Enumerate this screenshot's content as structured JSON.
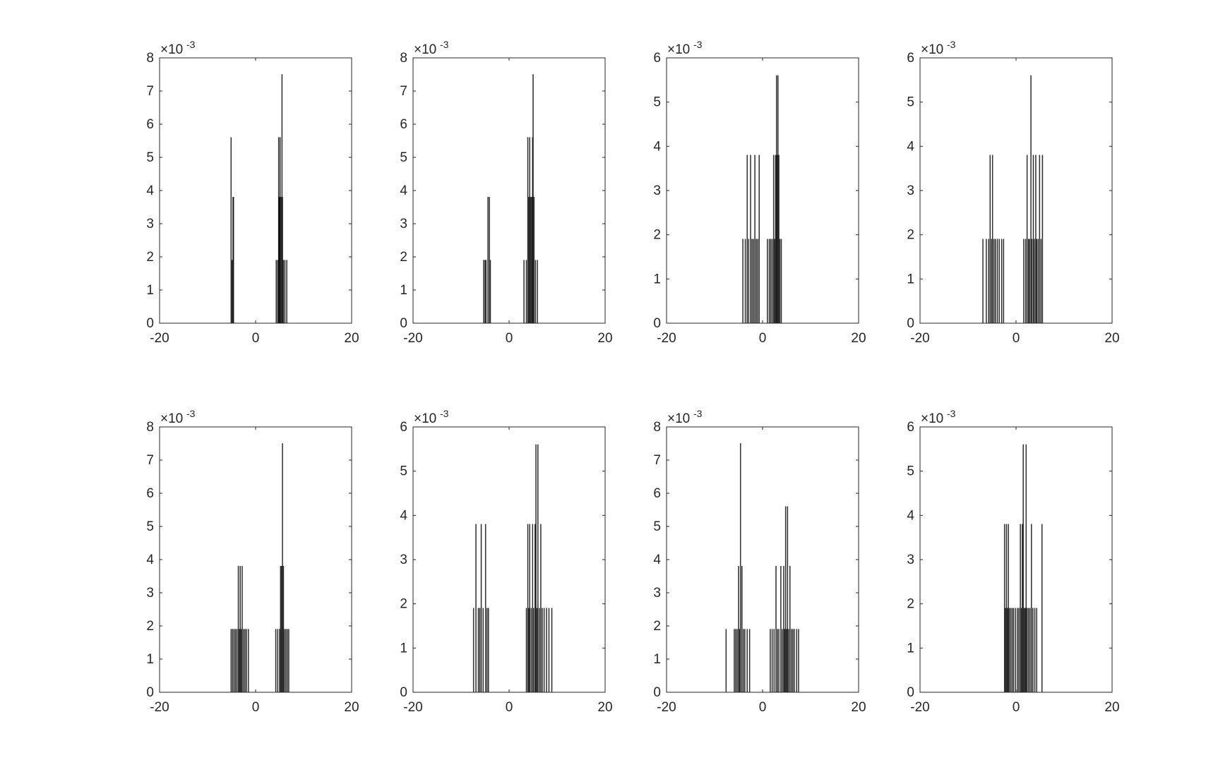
{
  "chart_data": [
    {
      "type": "bar",
      "ylim": [
        0,
        0.008
      ],
      "yticks": [
        0,
        1,
        2,
        3,
        4,
        5,
        6,
        7,
        8
      ],
      "ytick_labels": [
        "0",
        "1",
        "2",
        "3",
        "4",
        "5",
        "6",
        "7",
        "8"
      ],
      "xlim": [
        -20,
        20
      ],
      "xticks": [
        -20,
        0,
        20
      ],
      "xtick_labels": [
        "-20",
        "0",
        "20"
      ],
      "yexponent": "×10",
      "yexponent_power": "-3",
      "bars": [
        [
          -5.1,
          0.0056
        ],
        [
          -4.9,
          0.0019
        ],
        [
          -4.7,
          0.0038
        ],
        [
          -4.6,
          0.0038
        ],
        [
          4.3,
          0.0019
        ],
        [
          4.6,
          0.0019
        ],
        [
          4.8,
          0.0056
        ],
        [
          4.9,
          0.0038
        ],
        [
          5.0,
          0.0038
        ],
        [
          5.1,
          0.0056
        ],
        [
          5.3,
          0.0038
        ],
        [
          5.5,
          0.0075
        ],
        [
          5.6,
          0.0038
        ],
        [
          5.8,
          0.0019
        ],
        [
          6.1,
          0.0019
        ],
        [
          6.5,
          0.0019
        ]
      ]
    },
    {
      "type": "bar",
      "ylim": [
        0,
        0.008
      ],
      "yticks": [
        0,
        1,
        2,
        3,
        4,
        5,
        6,
        7,
        8
      ],
      "ytick_labels": [
        "0",
        "1",
        "2",
        "3",
        "4",
        "5",
        "6",
        "7",
        "8"
      ],
      "xlim": [
        -20,
        20
      ],
      "xticks": [
        -20,
        0,
        20
      ],
      "xtick_labels": [
        "-20",
        "0",
        "20"
      ],
      "yexponent": "×10",
      "yexponent_power": "-3",
      "bars": [
        [
          -5.3,
          0.0019
        ],
        [
          -5.0,
          0.0019
        ],
        [
          -4.8,
          0.0019
        ],
        [
          -4.4,
          0.0038
        ],
        [
          -4.1,
          0.0038
        ],
        [
          -3.9,
          0.0019
        ],
        [
          3.1,
          0.0019
        ],
        [
          3.6,
          0.0019
        ],
        [
          3.9,
          0.0056
        ],
        [
          4.1,
          0.0038
        ],
        [
          4.3,
          0.0056
        ],
        [
          4.5,
          0.0038
        ],
        [
          4.7,
          0.0038
        ],
        [
          4.9,
          0.0056
        ],
        [
          5.0,
          0.0075
        ],
        [
          5.2,
          0.0038
        ],
        [
          5.5,
          0.0019
        ],
        [
          5.9,
          0.0019
        ]
      ]
    },
    {
      "type": "bar",
      "ylim": [
        0,
        0.006
      ],
      "yticks": [
        0,
        1,
        2,
        3,
        4,
        5,
        6
      ],
      "ytick_labels": [
        "0",
        "1",
        "2",
        "3",
        "4",
        "5",
        "6"
      ],
      "xlim": [
        -20,
        20
      ],
      "xticks": [
        -20,
        0,
        20
      ],
      "xtick_labels": [
        "-20",
        "0",
        "20"
      ],
      "yexponent": "×10",
      "yexponent_power": "-3",
      "bars": [
        [
          -4.1,
          0.0019
        ],
        [
          -3.6,
          0.0019
        ],
        [
          -3.2,
          0.0038
        ],
        [
          -2.9,
          0.0019
        ],
        [
          -2.5,
          0.0038
        ],
        [
          -2.2,
          0.0019
        ],
        [
          -1.9,
          0.0019
        ],
        [
          -1.6,
          0.0038
        ],
        [
          -1.3,
          0.0019
        ],
        [
          -1.0,
          0.0019
        ],
        [
          -0.7,
          0.0038
        ],
        [
          1.0,
          0.0019
        ],
        [
          1.4,
          0.0019
        ],
        [
          1.7,
          0.0019
        ],
        [
          2.0,
          0.0019
        ],
        [
          2.3,
          0.0038
        ],
        [
          2.5,
          0.0019
        ],
        [
          2.7,
          0.0038
        ],
        [
          2.9,
          0.0056
        ],
        [
          3.0,
          0.0038
        ],
        [
          3.2,
          0.0056
        ],
        [
          3.4,
          0.0038
        ],
        [
          3.6,
          0.0019
        ],
        [
          3.9,
          0.0019
        ]
      ]
    },
    {
      "type": "bar",
      "ylim": [
        0,
        0.006
      ],
      "yticks": [
        0,
        1,
        2,
        3,
        4,
        5,
        6
      ],
      "ytick_labels": [
        "0",
        "1",
        "2",
        "3",
        "4",
        "5",
        "6"
      ],
      "xlim": [
        -20,
        20
      ],
      "xticks": [
        -20,
        0,
        20
      ],
      "xtick_labels": [
        "-20",
        "0",
        "20"
      ],
      "yexponent": "×10",
      "yexponent_power": "-3",
      "bars": [
        [
          -6.9,
          0.0019
        ],
        [
          -6.2,
          0.0019
        ],
        [
          -5.7,
          0.0019
        ],
        [
          -5.4,
          0.0038
        ],
        [
          -5.1,
          0.0019
        ],
        [
          -4.9,
          0.0038
        ],
        [
          -4.6,
          0.0019
        ],
        [
          -4.3,
          0.0019
        ],
        [
          -3.9,
          0.0019
        ],
        [
          -3.5,
          0.0019
        ],
        [
          -3.0,
          0.0019
        ],
        [
          -2.6,
          0.0019
        ],
        [
          1.6,
          0.0019
        ],
        [
          2.0,
          0.0019
        ],
        [
          2.3,
          0.0038
        ],
        [
          2.6,
          0.0019
        ],
        [
          2.8,
          0.0019
        ],
        [
          3.1,
          0.0056
        ],
        [
          3.3,
          0.0019
        ],
        [
          3.6,
          0.0038
        ],
        [
          3.8,
          0.0019
        ],
        [
          4.1,
          0.0038
        ],
        [
          4.3,
          0.0019
        ],
        [
          4.6,
          0.0019
        ],
        [
          4.9,
          0.0038
        ],
        [
          5.2,
          0.0019
        ],
        [
          5.5,
          0.0038
        ]
      ]
    },
    {
      "type": "bar",
      "ylim": [
        0,
        0.008
      ],
      "yticks": [
        0,
        1,
        2,
        3,
        4,
        5,
        6,
        7,
        8
      ],
      "ytick_labels": [
        "0",
        "1",
        "2",
        "3",
        "4",
        "5",
        "6",
        "7",
        "8"
      ],
      "xlim": [
        -20,
        20
      ],
      "xticks": [
        -20,
        0,
        20
      ],
      "xtick_labels": [
        "-20",
        "0",
        "20"
      ],
      "yexponent": "×10",
      "yexponent_power": "-3",
      "bars": [
        [
          -5.1,
          0.0019
        ],
        [
          -4.8,
          0.0019
        ],
        [
          -4.5,
          0.0019
        ],
        [
          -4.2,
          0.0019
        ],
        [
          -3.9,
          0.0019
        ],
        [
          -3.6,
          0.0038
        ],
        [
          -3.4,
          0.0019
        ],
        [
          -3.2,
          0.0038
        ],
        [
          -3.0,
          0.0019
        ],
        [
          -2.8,
          0.0038
        ],
        [
          -2.5,
          0.0019
        ],
        [
          -2.2,
          0.0019
        ],
        [
          -1.9,
          0.0019
        ],
        [
          -1.5,
          0.0019
        ],
        [
          4.2,
          0.0019
        ],
        [
          4.6,
          0.0019
        ],
        [
          5.0,
          0.0019
        ],
        [
          5.2,
          0.0038
        ],
        [
          5.4,
          0.0038
        ],
        [
          5.6,
          0.0075
        ],
        [
          5.8,
          0.0038
        ],
        [
          6.0,
          0.0019
        ],
        [
          6.3,
          0.0019
        ],
        [
          6.6,
          0.0019
        ],
        [
          6.9,
          0.0019
        ]
      ]
    },
    {
      "type": "bar",
      "ylim": [
        0,
        0.006
      ],
      "yticks": [
        0,
        1,
        2,
        3,
        4,
        5,
        6
      ],
      "ytick_labels": [
        "0",
        "1",
        "2",
        "3",
        "4",
        "5",
        "6"
      ],
      "xlim": [
        -20,
        20
      ],
      "xticks": [
        -20,
        0,
        20
      ],
      "xtick_labels": [
        "-20",
        "0",
        "20"
      ],
      "yexponent": "×10",
      "yexponent_power": "-3",
      "bars": [
        [
          -7.4,
          0.0019
        ],
        [
          -6.9,
          0.0038
        ],
        [
          -6.4,
          0.0019
        ],
        [
          -6.1,
          0.0019
        ],
        [
          -5.8,
          0.0038
        ],
        [
          -5.4,
          0.0019
        ],
        [
          -4.9,
          0.0038
        ],
        [
          -4.6,
          0.0019
        ],
        [
          -4.3,
          0.0019
        ],
        [
          3.6,
          0.0019
        ],
        [
          3.9,
          0.0038
        ],
        [
          4.1,
          0.0019
        ],
        [
          4.3,
          0.0038
        ],
        [
          4.6,
          0.0019
        ],
        [
          4.9,
          0.0038
        ],
        [
          5.1,
          0.0019
        ],
        [
          5.4,
          0.0038
        ],
        [
          5.6,
          0.0056
        ],
        [
          5.8,
          0.0019
        ],
        [
          6.0,
          0.0056
        ],
        [
          6.3,
          0.0019
        ],
        [
          6.6,
          0.0038
        ],
        [
          6.9,
          0.0019
        ],
        [
          7.3,
          0.0019
        ],
        [
          7.8,
          0.0019
        ],
        [
          8.3,
          0.0019
        ],
        [
          8.9,
          0.0019
        ]
      ]
    },
    {
      "type": "bar",
      "ylim": [
        0,
        0.008
      ],
      "yticks": [
        0,
        1,
        2,
        3,
        4,
        5,
        6,
        7,
        8
      ],
      "ytick_labels": [
        "0",
        "1",
        "2",
        "3",
        "4",
        "5",
        "6",
        "7",
        "8"
      ],
      "xlim": [
        -20,
        20
      ],
      "xticks": [
        -20,
        0,
        20
      ],
      "xtick_labels": [
        "-20",
        "0",
        "20"
      ],
      "yexponent": "×10",
      "yexponent_power": "-3",
      "bars": [
        [
          -7.6,
          0.0019
        ],
        [
          -5.9,
          0.0019
        ],
        [
          -5.6,
          0.0019
        ],
        [
          -5.3,
          0.0019
        ],
        [
          -5.0,
          0.0038
        ],
        [
          -4.8,
          0.0019
        ],
        [
          -4.6,
          0.0075
        ],
        [
          -4.3,
          0.0038
        ],
        [
          -4.0,
          0.0019
        ],
        [
          -3.7,
          0.0019
        ],
        [
          -3.2,
          0.0019
        ],
        [
          -2.7,
          0.0019
        ],
        [
          1.6,
          0.0019
        ],
        [
          2.0,
          0.0019
        ],
        [
          2.4,
          0.0019
        ],
        [
          2.8,
          0.0038
        ],
        [
          3.1,
          0.0019
        ],
        [
          3.4,
          0.0019
        ],
        [
          3.8,
          0.0038
        ],
        [
          4.1,
          0.0019
        ],
        [
          4.4,
          0.0038
        ],
        [
          4.6,
          0.0019
        ],
        [
          4.8,
          0.0056
        ],
        [
          5.0,
          0.0019
        ],
        [
          5.2,
          0.0056
        ],
        [
          5.4,
          0.0019
        ],
        [
          5.7,
          0.0038
        ],
        [
          6.0,
          0.0019
        ],
        [
          6.3,
          0.0019
        ],
        [
          6.6,
          0.0019
        ],
        [
          7.1,
          0.0019
        ],
        [
          7.5,
          0.0019
        ]
      ]
    },
    {
      "type": "bar",
      "ylim": [
        0,
        0.006
      ],
      "yticks": [
        0,
        1,
        2,
        3,
        4,
        5,
        6
      ],
      "ytick_labels": [
        "0",
        "1",
        "2",
        "3",
        "4",
        "5",
        "6"
      ],
      "xlim": [
        -20,
        20
      ],
      "xticks": [
        -20,
        0,
        20
      ],
      "xtick_labels": [
        "-20",
        "0",
        "20"
      ],
      "yexponent": "×10",
      "yexponent_power": "-3",
      "bars": [
        [
          -2.4,
          0.0038
        ],
        [
          -2.2,
          0.0019
        ],
        [
          -2.0,
          0.0038
        ],
        [
          -1.8,
          0.0019
        ],
        [
          -1.6,
          0.0038
        ],
        [
          -1.4,
          0.0019
        ],
        [
          -1.1,
          0.0019
        ],
        [
          -0.8,
          0.0019
        ],
        [
          -0.5,
          0.0019
        ],
        [
          -0.1,
          0.0019
        ],
        [
          0.3,
          0.0019
        ],
        [
          0.6,
          0.0019
        ],
        [
          0.9,
          0.0038
        ],
        [
          1.1,
          0.0019
        ],
        [
          1.3,
          0.0038
        ],
        [
          1.5,
          0.0056
        ],
        [
          1.7,
          0.0019
        ],
        [
          1.9,
          0.0019
        ],
        [
          2.1,
          0.0056
        ],
        [
          2.3,
          0.0019
        ],
        [
          2.6,
          0.0019
        ],
        [
          2.9,
          0.0019
        ],
        [
          3.2,
          0.0038
        ],
        [
          3.5,
          0.0019
        ],
        [
          3.9,
          0.0019
        ],
        [
          4.3,
          0.0019
        ],
        [
          5.4,
          0.0038
        ]
      ]
    }
  ]
}
